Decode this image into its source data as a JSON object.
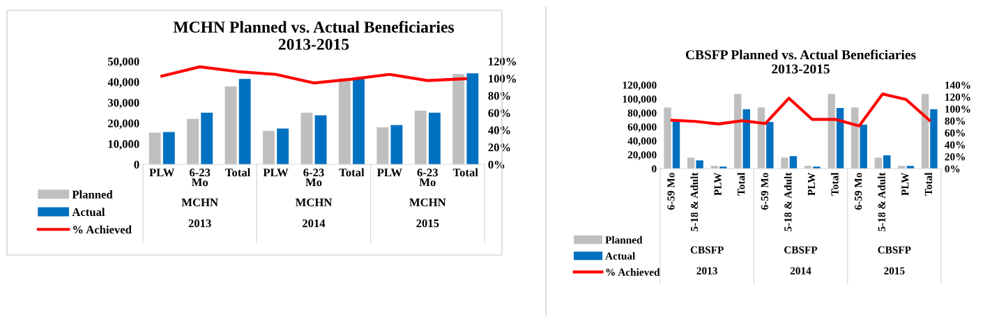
{
  "chart_data": [
    {
      "type": "bar",
      "title": "MCHN Planned vs. Actual Beneficiaries\n2013-2015",
      "categories": [
        "PLW",
        "6-23\nMo",
        "Total",
        "PLW",
        "6-23\nMo",
        "Total",
        "PLW",
        "6-23\nMo",
        "Total"
      ],
      "series": [
        {
          "name": "Planned",
          "color": "#bfbfbf",
          "values": [
            15400,
            22100,
            37800,
            16300,
            25100,
            41700,
            18000,
            26100,
            43800
          ]
        },
        {
          "name": "Actual",
          "color": "#0070c0",
          "values": [
            15700,
            25100,
            41500,
            17400,
            23800,
            41500,
            19100,
            25100,
            44200
          ]
        },
        {
          "name": "% Achieved",
          "type": "line",
          "axis": "y2",
          "color": "#ff0000",
          "values": [
            102.8,
            113.6,
            108,
            104.8,
            94.8,
            99.2,
            104.8,
            97.6,
            99.8
          ]
        }
      ],
      "ylim": [
        0,
        50000
      ],
      "yticks": [
        {
          "value": 0,
          "label": "0"
        },
        {
          "value": 10000,
          "label": "10,000"
        },
        {
          "value": 20000,
          "label": "20,000"
        },
        {
          "value": 30000,
          "label": "30,000"
        },
        {
          "value": 40000,
          "label": "40,000"
        },
        {
          "value": 50000,
          "label": "50,000"
        }
      ],
      "y2lim": [
        0,
        120
      ],
      "y2ticks": [
        {
          "value": 0,
          "label": "0%"
        },
        {
          "value": 20,
          "label": "20%"
        },
        {
          "value": 40,
          "label": "40%"
        },
        {
          "value": 60,
          "label": "60%"
        },
        {
          "value": 80,
          "label": "80%"
        },
        {
          "value": 100,
          "label": "100%"
        },
        {
          "value": 120,
          "label": "120%"
        }
      ],
      "annotations": [
        "MCHN",
        "MCHN",
        "MCHN",
        "2013",
        "2014",
        "2015"
      ],
      "legend": "bottom left",
      "grid": false
    },
    {
      "type": "bar",
      "title": "CBSFP Planned vs. Actual Beneficiaries\n2013-2015",
      "categories": [
        "6-59 Mo",
        "5-18 & Adult",
        "PLW",
        "Total",
        "6-59 Mo",
        "5-18 & Adult",
        "PLW",
        "Total",
        "6-59 Mo",
        "5-18 & Adult",
        "PLW",
        "Total"
      ],
      "series": [
        {
          "name": "Planned",
          "color": "#bfbfbf",
          "values": [
            87800,
            15800,
            3900,
            107200,
            87800,
            15800,
            3900,
            107200,
            87800,
            15800,
            3900,
            107200
          ]
        },
        {
          "name": "Actual",
          "color": "#0070c0",
          "values": [
            71000,
            11800,
            2900,
            85300,
            67000,
            17900,
            2900,
            87100,
            63100,
            19000,
            3900,
            85300
          ]
        },
        {
          "name": "% Achieved",
          "type": "line",
          "axis": "y2",
          "color": "#ff0000",
          "values": [
            81,
            79,
            74.8,
            80.2,
            75.6,
            117.9,
            82.3,
            82.3,
            71.5,
            125,
            115.8,
            81
          ]
        }
      ],
      "ylim": [
        0,
        120000
      ],
      "yticks": [
        {
          "value": 0,
          "label": "0"
        },
        {
          "value": 20000,
          "label": "20,000"
        },
        {
          "value": 40000,
          "label": "40,000"
        },
        {
          "value": 60000,
          "label": "60,000"
        },
        {
          "value": 80000,
          "label": "80,000"
        },
        {
          "value": 100000,
          "label": "100,000"
        },
        {
          "value": 120000,
          "label": "120,000"
        }
      ],
      "y2lim": [
        0,
        140
      ],
      "y2ticks": [
        {
          "value": 0,
          "label": "0%"
        },
        {
          "value": 20,
          "label": "20%"
        },
        {
          "value": 40,
          "label": "40%"
        },
        {
          "value": 60,
          "label": "60%"
        },
        {
          "value": 80,
          "label": "80%"
        },
        {
          "value": 100,
          "label": "100%"
        },
        {
          "value": 120,
          "label": "120%"
        },
        {
          "value": 140,
          "label": "140%"
        }
      ],
      "annotations": [
        "CBSFP",
        "CBSFP",
        "CBSFP",
        "2013",
        "2014",
        "2015"
      ],
      "legend": "bottom left",
      "grid": false
    }
  ]
}
